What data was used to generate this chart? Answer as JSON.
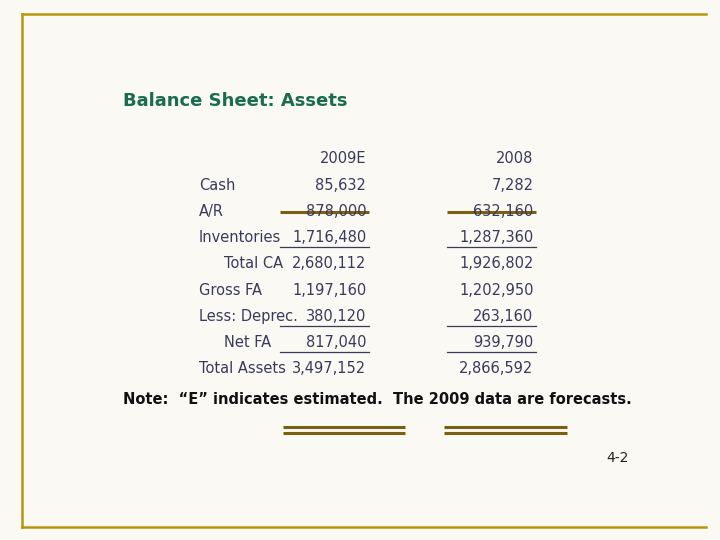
{
  "title": "Balance Sheet: Assets",
  "title_color": "#1a6b50",
  "background_color": "#faf9f4",
  "border_color": "#b8960c",
  "col_header_2009": "2009E",
  "col_header_2008": "2008",
  "rows": [
    {
      "label": "Cash",
      "indent": false,
      "val2009": "85,632",
      "val2008": "7,282",
      "strikethrough": false,
      "underline": false
    },
    {
      "label": "A/R",
      "indent": false,
      "val2009": "878,000",
      "val2008": "632,160",
      "strikethrough": true,
      "underline": false
    },
    {
      "label": "Inventories",
      "indent": false,
      "val2009": "1,716,480",
      "val2008": "1,287,360",
      "strikethrough": false,
      "underline": true
    },
    {
      "label": "Total CA",
      "indent": true,
      "val2009": "2,680,112",
      "val2008": "1,926,802",
      "strikethrough": false,
      "underline": false
    },
    {
      "label": "Gross FA",
      "indent": false,
      "val2009": "1,197,160",
      "val2008": "1,202,950",
      "strikethrough": false,
      "underline": false
    },
    {
      "label": "Less: Deprec.",
      "indent": false,
      "val2009": "380,120",
      "val2008": "263,160",
      "strikethrough": false,
      "underline": true
    },
    {
      "label": "Net FA",
      "indent": true,
      "val2009": "817,040",
      "val2008": "939,790",
      "strikethrough": false,
      "underline": true
    },
    {
      "label": "Total Assets",
      "indent": false,
      "val2009": "3,497,152",
      "val2008": "2,866,592",
      "strikethrough": false,
      "underline": false
    }
  ],
  "note": "Note:  “E” indicates estimated.  The 2009 data are forecasts.",
  "page_num": "4-2",
  "label_color": "#3a3a5c",
  "value_color": "#3a3a5c",
  "header_color": "#3a3a5c",
  "underline_color": "#3a3a5c",
  "strikethrough_color": "#7a6010",
  "double_line_color": "#7a6010",
  "title_fontsize": 13,
  "body_fontsize": 10.5,
  "note_fontsize": 10.5
}
